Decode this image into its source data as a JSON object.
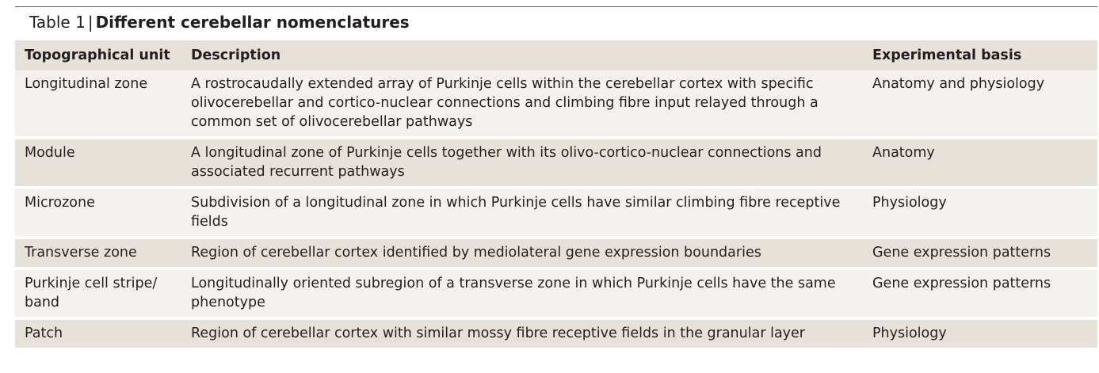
{
  "caption": {
    "label": "Table 1",
    "separator": "|",
    "title": "Different cerebellar nomenclatures"
  },
  "table": {
    "headers": [
      "Topographical unit",
      "Description",
      "Experimental basis"
    ],
    "rows": [
      {
        "unit": "Longitudinal zone",
        "description": "A rostrocaudally extended array of Purkinje cells within the cerebellar cortex with specific olivocerebellar and cortico-nuclear connections and climbing fibre input relayed through a common set of olivocerebellar pathways",
        "basis": "Anatomy and physiology"
      },
      {
        "unit": "Module",
        "description": "A longitudinal zone of Purkinje cells together with its olivo-cortico-nuclear connections and associated recurrent pathways",
        "basis": "Anatomy"
      },
      {
        "unit": "Microzone",
        "description": "Subdivision of a longitudinal zone in which Purkinje cells have similar climbing fibre receptive fields",
        "basis": "Physiology"
      },
      {
        "unit": "Transverse zone",
        "description": "Region of cerebellar cortex identified by mediolateral gene expression boundaries",
        "basis": "Gene expression patterns"
      },
      {
        "unit": "Purkinje cell stripe/ band",
        "description": "Longitudinally oriented subregion of a transverse zone in which Purkinje cells have the same phenotype",
        "basis": "Gene expression patterns"
      },
      {
        "unit": "Patch",
        "description": "Region of cerebellar cortex with similar mossy fibre receptive fields in the granular layer",
        "basis": "Physiology"
      }
    ]
  },
  "colors": {
    "header_bg": "#e6e2da",
    "row_light": "#f4f2ee",
    "row_dark": "#e6e2da",
    "text": "#231f20"
  }
}
